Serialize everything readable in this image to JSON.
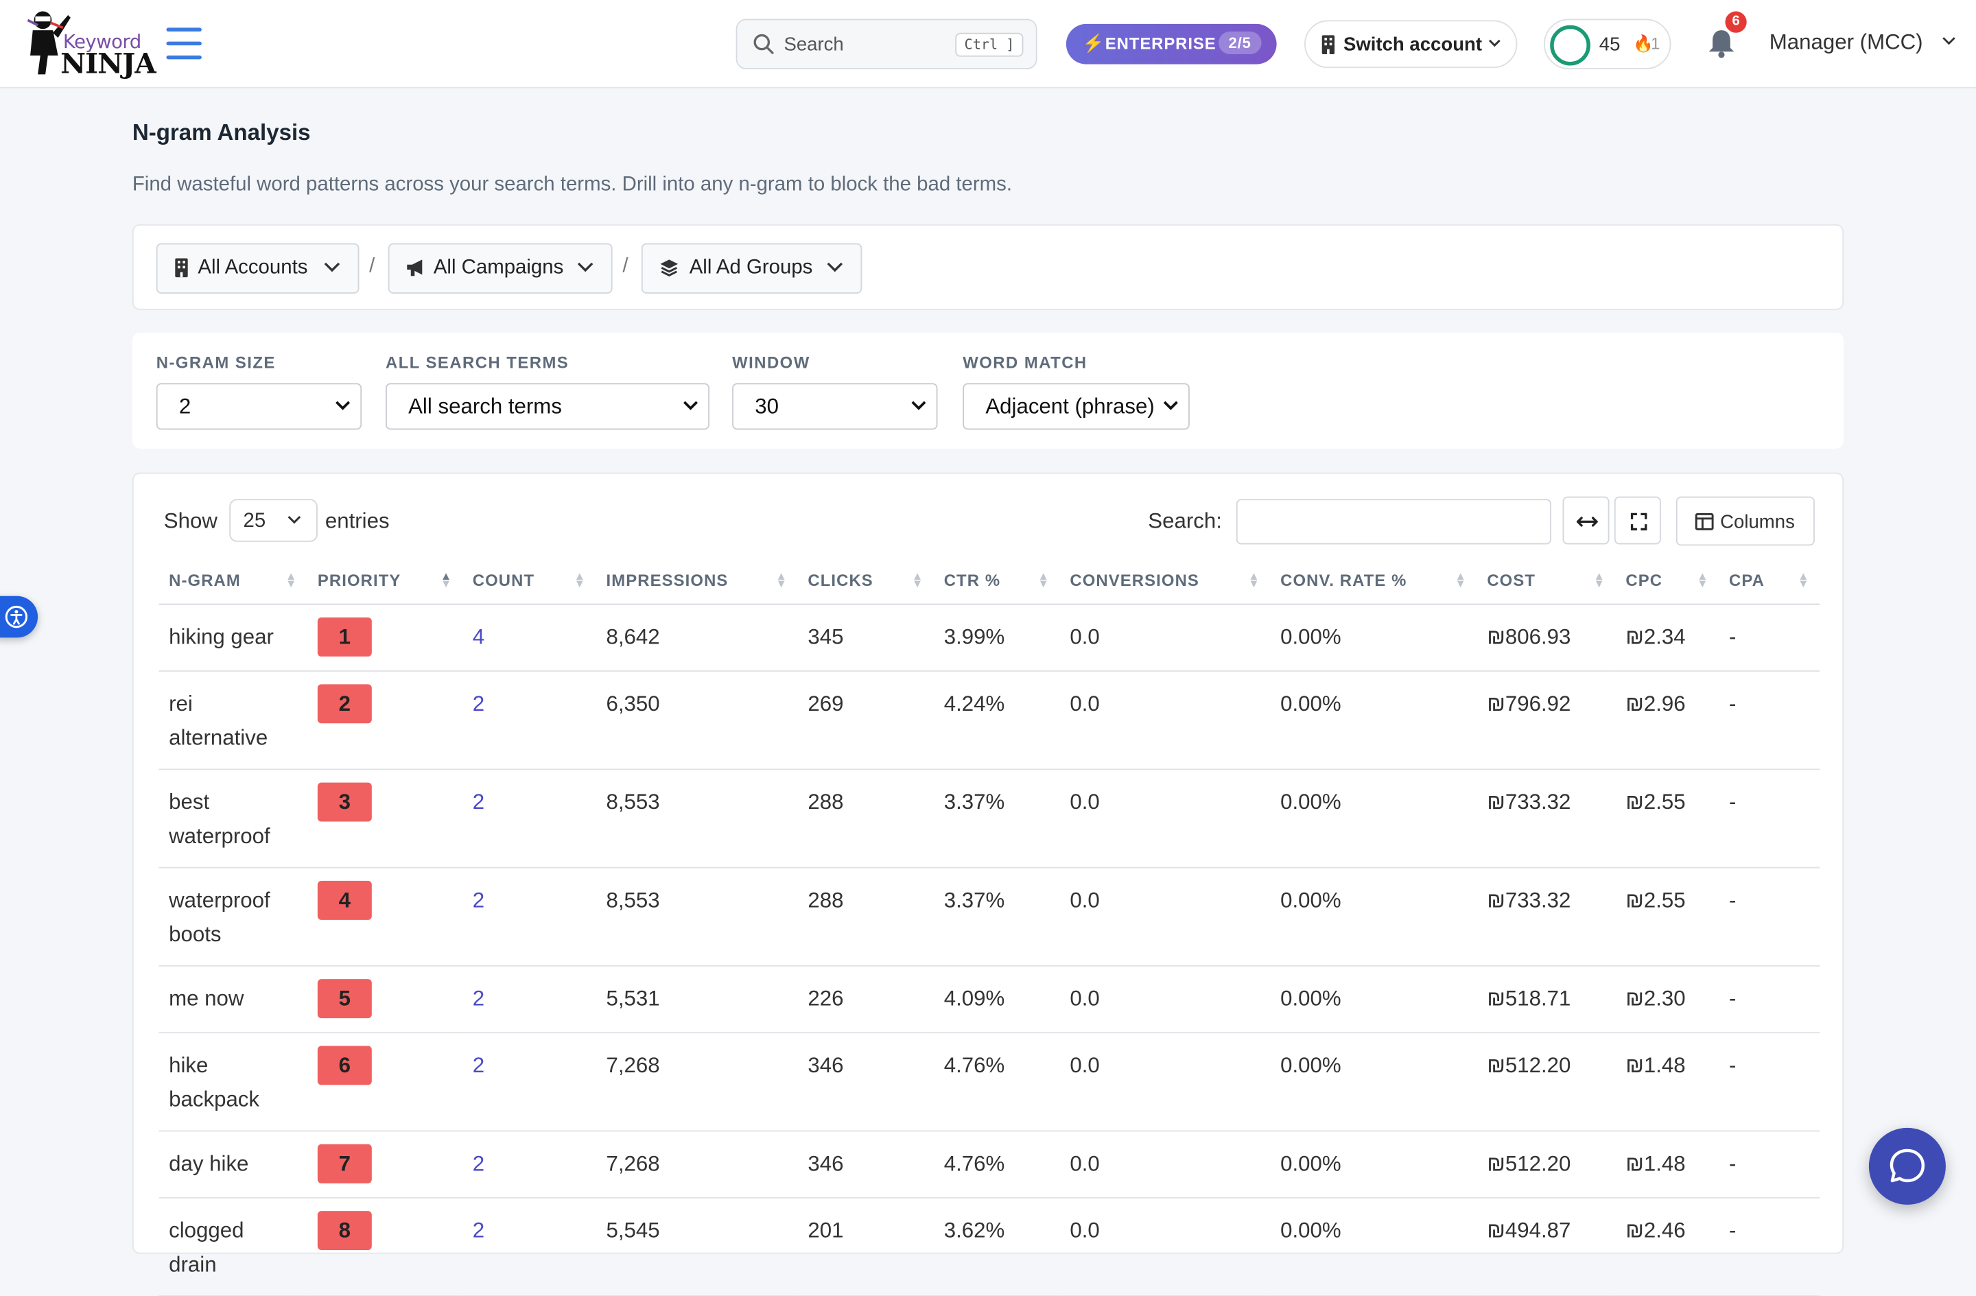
{
  "header": {
    "logo_word1": "Keyword",
    "logo_word2": "NINJA",
    "search_placeholder": "Search",
    "search_shortcut": "Ctrl ]",
    "plan_label": "ENTERPRISE",
    "plan_usage": "2/5",
    "switch_account_label": "Switch account",
    "score_value": "45",
    "streak_value": "1",
    "notification_count": "6",
    "account_label": "Manager (MCC)"
  },
  "page": {
    "title": "N-gram Analysis",
    "subtitle": "Find wasteful word patterns across your search terms. Drill into any n-gram to block the bad terms."
  },
  "filters": {
    "accounts": "All Accounts",
    "campaigns": "All Campaigns",
    "ad_groups": "All Ad Groups",
    "separator": "/"
  },
  "options": {
    "ngram_size": {
      "label": "N-GRAM SIZE",
      "value": "2"
    },
    "search_terms": {
      "label": "ALL SEARCH TERMS",
      "value": "All search terms"
    },
    "window": {
      "label": "WINDOW",
      "value": "30"
    },
    "word_match": {
      "label": "WORD MATCH",
      "value": "Adjacent (phrase)"
    }
  },
  "table_controls": {
    "show_label": "Show",
    "page_size": "25",
    "entries_label": "entries",
    "search_label": "Search:",
    "columns_label": "Columns"
  },
  "table": {
    "columns": [
      "N-GRAM",
      "PRIORITY",
      "COUNT",
      "IMPRESSIONS",
      "CLICKS",
      "CTR %",
      "CONVERSIONS",
      "CONV. RATE %",
      "COST",
      "CPC",
      "CPA"
    ],
    "rows": [
      {
        "ngram": "hiking gear",
        "priority": "1",
        "count": "4",
        "impressions": "8,642",
        "clicks": "345",
        "ctr": "3.99%",
        "conversions": "0.0",
        "conv_rate": "0.00%",
        "cost": "₪806.93",
        "cpc": "₪2.34",
        "cpa": "-"
      },
      {
        "ngram": "rei alternative",
        "priority": "2",
        "count": "2",
        "impressions": "6,350",
        "clicks": "269",
        "ctr": "4.24%",
        "conversions": "0.0",
        "conv_rate": "0.00%",
        "cost": "₪796.92",
        "cpc": "₪2.96",
        "cpa": "-"
      },
      {
        "ngram": "best waterproof",
        "priority": "3",
        "count": "2",
        "impressions": "8,553",
        "clicks": "288",
        "ctr": "3.37%",
        "conversions": "0.0",
        "conv_rate": "0.00%",
        "cost": "₪733.32",
        "cpc": "₪2.55",
        "cpa": "-"
      },
      {
        "ngram": "waterproof boots",
        "priority": "4",
        "count": "2",
        "impressions": "8,553",
        "clicks": "288",
        "ctr": "3.37%",
        "conversions": "0.0",
        "conv_rate": "0.00%",
        "cost": "₪733.32",
        "cpc": "₪2.55",
        "cpa": "-"
      },
      {
        "ngram": "me now",
        "priority": "5",
        "count": "2",
        "impressions": "5,531",
        "clicks": "226",
        "ctr": "4.09%",
        "conversions": "0.0",
        "conv_rate": "0.00%",
        "cost": "₪518.71",
        "cpc": "₪2.30",
        "cpa": "-"
      },
      {
        "ngram": "hike backpack",
        "priority": "6",
        "count": "2",
        "impressions": "7,268",
        "clicks": "346",
        "ctr": "4.76%",
        "conversions": "0.0",
        "conv_rate": "0.00%",
        "cost": "₪512.20",
        "cpc": "₪1.48",
        "cpa": "-"
      },
      {
        "ngram": "day hike",
        "priority": "7",
        "count": "2",
        "impressions": "7,268",
        "clicks": "346",
        "ctr": "4.76%",
        "conversions": "0.0",
        "conv_rate": "0.00%",
        "cost": "₪512.20",
        "cpc": "₪1.48",
        "cpa": "-"
      },
      {
        "ngram": "clogged drain",
        "priority": "8",
        "count": "2",
        "impressions": "5,545",
        "clicks": "201",
        "ctr": "3.62%",
        "conversions": "0.0",
        "conv_rate": "0.00%",
        "cost": "₪494.87",
        "cpc": "₪2.46",
        "cpa": "-"
      }
    ]
  },
  "colors": {
    "accent": "#6b6bd8",
    "priority_badge": "#f06060",
    "count_link": "#4a4ac8",
    "chat_button": "#3f4bb5"
  },
  "icons": [
    "menu-icon",
    "search-icon",
    "bolt-icon",
    "building-icon",
    "chevron-down-icon",
    "fire-icon",
    "bell-icon",
    "bullhorn-icon",
    "layers-icon",
    "expand-width-icon",
    "fullscreen-icon",
    "columns-icon",
    "accessibility-icon",
    "chat-icon"
  ]
}
